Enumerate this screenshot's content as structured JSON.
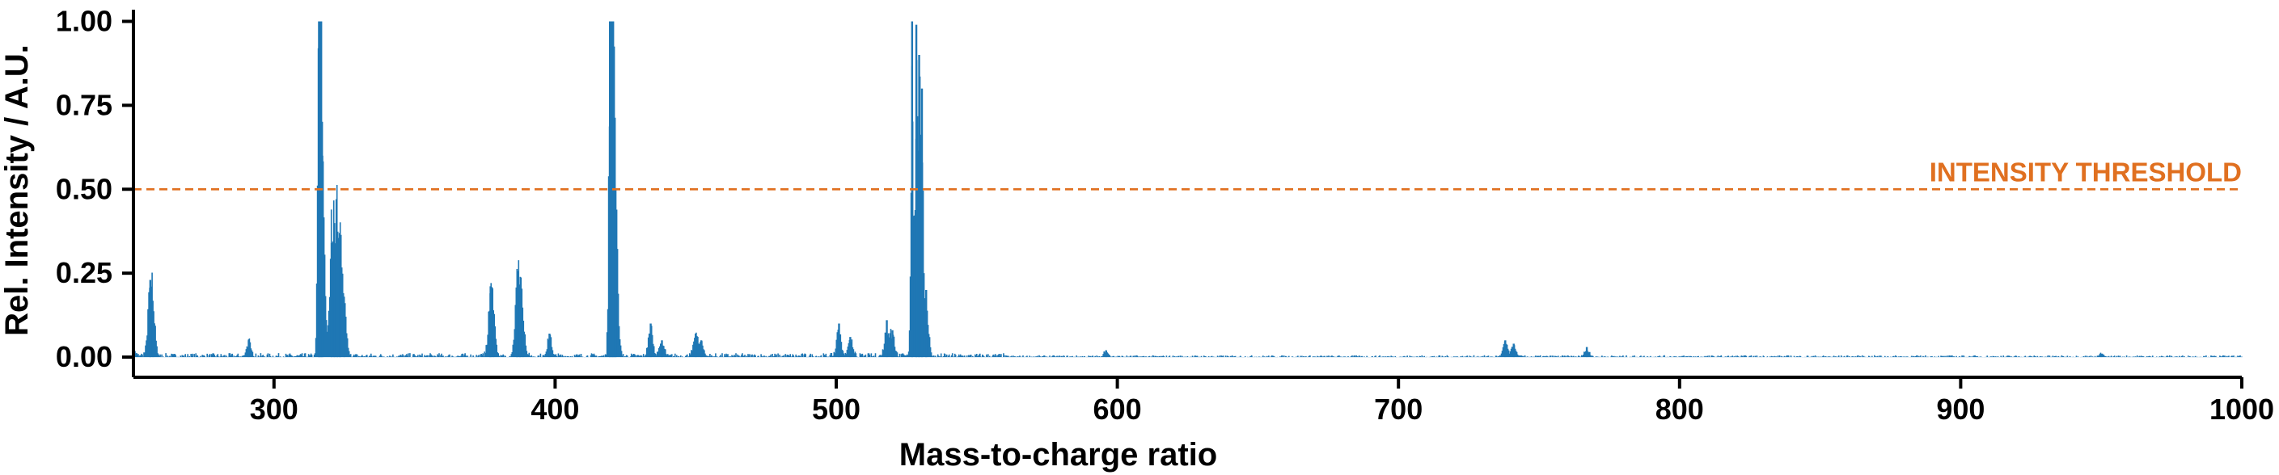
{
  "chart_data": {
    "type": "line",
    "xlabel": "Mass-to-charge ratio",
    "ylabel": "Rel. Intensity / A.U.",
    "xlim": [
      250,
      1000
    ],
    "ylim": [
      -0.06,
      1.03
    ],
    "x_ticks": [
      300,
      400,
      500,
      600,
      700,
      800,
      900,
      1000
    ],
    "x_tick_labels": [
      "300",
      "400",
      "500",
      "600",
      "700",
      "800",
      "900",
      "1000"
    ],
    "y_ticks": [
      0,
      0.25,
      0.5,
      0.75,
      1.0
    ],
    "y_tick_labels": [
      "0.00",
      "0.25",
      "0.50",
      "0.75",
      "1.00"
    ],
    "grid": false,
    "colors": {
      "spectrum": "#1f77b4",
      "threshold": "#e07020",
      "axes": "#000000"
    },
    "series": [
      {
        "kind": "spectrum",
        "baseline_noise": 0.012,
        "peaks": [
          {
            "mz": 250.0,
            "intensity": 0.02
          },
          {
            "mz": 256.0,
            "intensity": 0.23
          },
          {
            "mz": 257.0,
            "intensity": 0.12
          },
          {
            "mz": 291.0,
            "intensity": 0.05
          },
          {
            "mz": 316.0,
            "intensity": 1.0
          },
          {
            "mz": 316.6,
            "intensity": 0.75
          },
          {
            "mz": 317.2,
            "intensity": 0.6
          },
          {
            "mz": 320.5,
            "intensity": 0.34
          },
          {
            "mz": 321.5,
            "intensity": 0.3
          },
          {
            "mz": 322.5,
            "intensity": 0.25
          },
          {
            "mz": 323.5,
            "intensity": 0.3
          },
          {
            "mz": 325.0,
            "intensity": 0.15
          },
          {
            "mz": 377.0,
            "intensity": 0.19
          },
          {
            "mz": 378.0,
            "intensity": 0.12
          },
          {
            "mz": 386.5,
            "intensity": 0.19
          },
          {
            "mz": 387.5,
            "intensity": 0.18
          },
          {
            "mz": 388.5,
            "intensity": 0.1
          },
          {
            "mz": 398.0,
            "intensity": 0.07
          },
          {
            "mz": 419.5,
            "intensity": 1.0
          },
          {
            "mz": 420.2,
            "intensity": 0.99
          },
          {
            "mz": 420.8,
            "intensity": 0.8
          },
          {
            "mz": 421.5,
            "intensity": 0.5
          },
          {
            "mz": 434.0,
            "intensity": 0.1
          },
          {
            "mz": 438.0,
            "intensity": 0.05
          },
          {
            "mz": 450.0,
            "intensity": 0.07
          },
          {
            "mz": 452.0,
            "intensity": 0.05
          },
          {
            "mz": 501.0,
            "intensity": 0.1
          },
          {
            "mz": 505.0,
            "intensity": 0.06
          },
          {
            "mz": 518.0,
            "intensity": 0.11
          },
          {
            "mz": 520.0,
            "intensity": 0.08
          },
          {
            "mz": 527.0,
            "intensity": 1.0
          },
          {
            "mz": 528.5,
            "intensity": 0.99
          },
          {
            "mz": 529.5,
            "intensity": 0.9
          },
          {
            "mz": 530.5,
            "intensity": 0.8
          },
          {
            "mz": 532.0,
            "intensity": 0.2
          },
          {
            "mz": 596.0,
            "intensity": 0.02
          },
          {
            "mz": 738.0,
            "intensity": 0.05
          },
          {
            "mz": 741.0,
            "intensity": 0.04
          },
          {
            "mz": 767.0,
            "intensity": 0.03
          },
          {
            "mz": 950.0,
            "intensity": 0.01
          }
        ]
      },
      {
        "kind": "threshold",
        "y": 0.5
      }
    ],
    "annotations": [
      {
        "text": "INTENSITY THRESHOLD",
        "y": 0.5
      }
    ]
  }
}
